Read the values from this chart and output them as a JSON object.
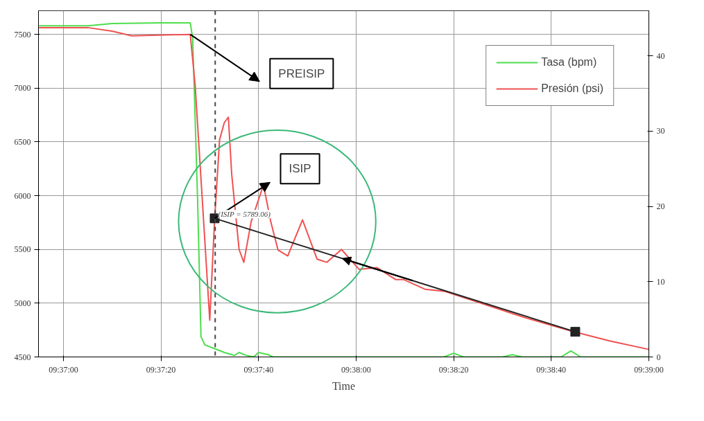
{
  "chart_data": {
    "type": "line",
    "xlabel": "Time",
    "xlim": [
      9.61525,
      9.65
    ],
    "ylim": [
      4500,
      7720
    ],
    "y2lim": [
      0,
      46
    ],
    "xticks": [
      {
        "value": 9.61667,
        "label": "09:37:00"
      },
      {
        "value": 9.62222,
        "label": "09:37:20"
      },
      {
        "value": 9.62778,
        "label": "09:37:40"
      },
      {
        "value": 9.63333,
        "label": "09:38:00"
      },
      {
        "value": 9.63889,
        "label": "09:38:20"
      },
      {
        "value": 9.64444,
        "label": "09:38:40"
      },
      {
        "value": 9.65,
        "label": "09:39:00"
      }
    ],
    "yticks": [
      4500,
      5000,
      5500,
      6000,
      6500,
      7000,
      7500
    ],
    "y2ticks": [
      0,
      10,
      20,
      30,
      40
    ],
    "grid": true,
    "legend": "top right",
    "series": [
      {
        "name": "Tasa (bpm)",
        "color": "#4ddd4d",
        "axis": "y2",
        "x": [
          9.61528,
          9.61806,
          9.61944,
          9.62222,
          9.62389,
          9.62403,
          9.62431,
          9.6245,
          9.62472,
          9.62528,
          9.62583,
          9.62639,
          9.62667,
          9.62708,
          9.6275,
          9.62778,
          9.62833,
          9.62861,
          9.63833,
          9.63889,
          9.63944,
          9.64167,
          9.64222,
          9.64278,
          9.645,
          9.64556,
          9.64611,
          9.65
        ],
        "values": [
          44.0,
          44.0,
          44.3,
          44.4,
          44.4,
          42.3,
          20.7,
          2.7,
          1.6,
          1.1,
          0.6,
          0.2,
          0.6,
          0.2,
          0,
          0.6,
          0.3,
          0,
          0,
          0.5,
          0,
          0,
          0.3,
          0,
          0,
          0.8,
          0,
          0
        ]
      },
      {
        "name": "Presión (psi)",
        "color": "#f05050",
        "x": [
          9.61528,
          9.61806,
          9.61944,
          9.62056,
          9.62389,
          9.62417,
          9.62458,
          9.625,
          9.62528,
          9.62556,
          9.62583,
          9.62606,
          9.62625,
          9.62667,
          9.62694,
          9.62736,
          9.62806,
          9.62847,
          9.62889,
          9.62944,
          9.63028,
          9.63111,
          9.63167,
          9.6325,
          9.6335,
          9.63453,
          9.63558,
          9.63603,
          9.63725,
          9.63839,
          9.64025,
          9.64286,
          9.6455,
          9.64775,
          9.65
        ],
        "values": [
          7563,
          7563,
          7530,
          7487,
          7500,
          7025,
          5950,
          4842,
          5789,
          6520,
          6680,
          6730,
          6200,
          5500,
          5380,
          5760,
          6100,
          5760,
          5494,
          5440,
          5775,
          5410,
          5380,
          5500,
          5315,
          5330,
          5220,
          5220,
          5130,
          5110,
          5010,
          4870,
          4745,
          4650,
          4570
        ]
      },
      {
        "type": "line",
        "color": "#222222",
        "marker": "square",
        "x": [
          9.62528,
          9.64581
        ],
        "values": [
          5789.06,
          4734
        ]
      }
    ],
    "ref_lines": [
      {
        "axis": "x",
        "value": 9.62531,
        "color": "#444444",
        "line_style": "dashed"
      }
    ],
    "annotations": [
      "PREISIP",
      "ISIP",
      {
        "text": "(ISIP = 5789.06)",
        "x": 9.62528,
        "y": 5789.06
      }
    ]
  }
}
